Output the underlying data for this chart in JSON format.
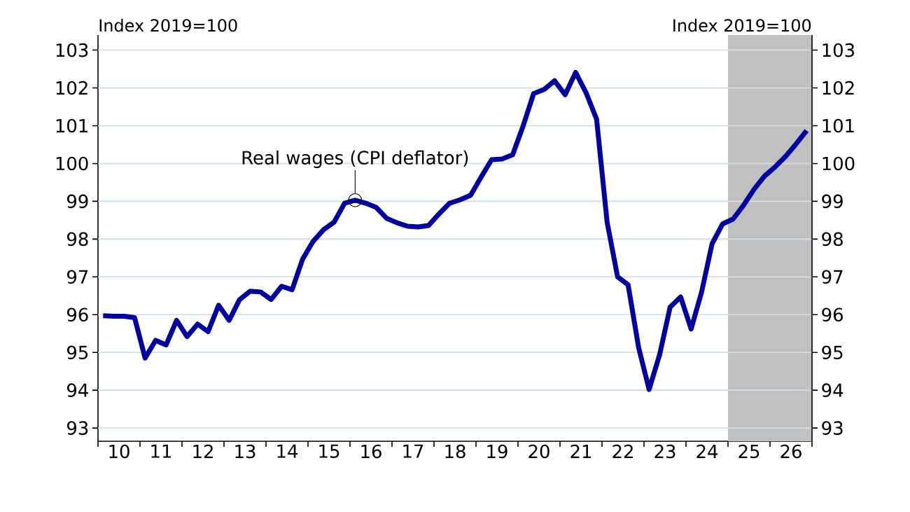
{
  "chart_data": {
    "type": "line",
    "ylabel": "Index 2019=100",
    "y2label": "Index 2019=100",
    "x": [
      "2010-02-15",
      "2010-05-15",
      "2010-08-15",
      "2010-11-15",
      "2011-02-15",
      "2011-05-15",
      "2011-08-15",
      "2011-11-15",
      "2012-02-15",
      "2012-05-15",
      "2012-08-15",
      "2012-11-15",
      "2013-02-15",
      "2013-05-15",
      "2013-08-15",
      "2013-11-15",
      "2014-02-15",
      "2014-05-15",
      "2014-08-15",
      "2014-11-15",
      "2015-02-15",
      "2015-05-15",
      "2015-08-15",
      "2015-11-15",
      "2016-02-15",
      "2016-05-15",
      "2016-08-15",
      "2016-11-15",
      "2017-02-15",
      "2017-05-15",
      "2017-08-15",
      "2017-11-15",
      "2018-02-15",
      "2018-05-15",
      "2018-08-15",
      "2018-11-15",
      "2019-02-15",
      "2019-05-15",
      "2019-08-15",
      "2019-11-15",
      "2020-02-15",
      "2020-05-15",
      "2020-08-15",
      "2020-11-15",
      "2021-02-15",
      "2021-05-15",
      "2021-08-15",
      "2021-11-15",
      "2022-02-15",
      "2022-05-15",
      "2022-08-15",
      "2022-11-15",
      "2023-02-15",
      "2023-05-15",
      "2023-08-15",
      "2023-11-15",
      "2024-02-15",
      "2024-05-15",
      "2024-08-15",
      "2024-11-15",
      "2025-02-15",
      "2025-05-15",
      "2025-08-15",
      "2025-11-15",
      "2026-02-15",
      "2026-05-15",
      "2026-08-15",
      "2026-11-15"
    ],
    "series": [
      {
        "color": "#0000a0",
        "values": [
          95.97,
          95.96,
          95.96,
          95.92,
          94.85,
          95.32,
          95.2,
          95.85,
          95.42,
          95.75,
          95.55,
          96.25,
          95.85,
          96.4,
          96.62,
          96.6,
          96.4,
          96.75,
          96.66,
          97.47,
          97.94,
          98.25,
          98.45,
          98.95,
          99.03,
          98.95,
          98.84,
          98.55,
          98.43,
          98.34,
          98.32,
          98.36,
          98.67,
          98.95,
          99.04,
          99.16,
          99.64,
          100.1,
          100.12,
          100.23,
          100.99,
          101.85,
          101.96,
          102.19,
          101.82,
          102.41,
          101.87,
          101.17,
          98.45,
          97.0,
          96.79,
          95.13,
          94.02,
          94.94,
          96.2,
          96.47,
          95.62,
          96.6,
          97.88,
          98.4,
          98.53,
          98.9,
          99.32,
          99.67,
          99.91,
          100.19,
          100.52,
          100.87
        ]
      }
    ],
    "xlim": [
      "2010",
      "2027"
    ],
    "xticks": [
      {
        "value": "2010",
        "label": null
      },
      {
        "value": "2010-07-01",
        "label": "10"
      },
      {
        "value": "2011",
        "label": null
      },
      {
        "value": "2011-07-01",
        "label": "11"
      },
      {
        "value": "2012",
        "label": null
      },
      {
        "value": "2012-07-01",
        "label": "12"
      },
      {
        "value": "2013",
        "label": null
      },
      {
        "value": "2013-07-01",
        "label": "13"
      },
      {
        "value": "2014",
        "label": null
      },
      {
        "value": "2014-07-01",
        "label": "14"
      },
      {
        "value": "2015",
        "label": null
      },
      {
        "value": "2015-07-01",
        "label": "15"
      },
      {
        "value": "2016",
        "label": null
      },
      {
        "value": "2016-07-01",
        "label": "16"
      },
      {
        "value": "2017",
        "label": null
      },
      {
        "value": "2017-07-01",
        "label": "17"
      },
      {
        "value": "2018",
        "label": null
      },
      {
        "value": "2018-07-01",
        "label": "18"
      },
      {
        "value": "2019",
        "label": null
      },
      {
        "value": "2019-07-01",
        "label": "19"
      },
      {
        "value": "2020",
        "label": null
      },
      {
        "value": "2020-07-01",
        "label": "20"
      },
      {
        "value": "2021",
        "label": null
      },
      {
        "value": "2021-07-01",
        "label": "21"
      },
      {
        "value": "2022",
        "label": null
      },
      {
        "value": "2022-07-01",
        "label": "22"
      },
      {
        "value": "2023",
        "label": null
      },
      {
        "value": "2023-07-01",
        "label": "23"
      },
      {
        "value": "2024",
        "label": null
      },
      {
        "value": "2024-07-01",
        "label": "24"
      },
      {
        "value": "2025",
        "label": null
      },
      {
        "value": "2025-07-01",
        "label": "25"
      },
      {
        "value": "2026",
        "label": null
      },
      {
        "value": "2026-07-01",
        "label": "26"
      },
      {
        "value": "2027",
        "label": null
      }
    ],
    "ylim": [
      92.65,
      103.4
    ],
    "yticks": [
      93,
      94,
      95,
      96,
      97,
      98,
      99,
      100,
      101,
      102,
      103
    ],
    "y2lim": [
      92.65,
      103.4
    ],
    "y2ticks": [
      93,
      94,
      95,
      96,
      97,
      98,
      99,
      100,
      101,
      102,
      103
    ],
    "grid": "y",
    "bands": [
      {
        "axis": "x",
        "from": "2025",
        "to": "2027",
        "color": "#c0c0c0"
      }
    ],
    "annotations": [
      {
        "text": "Real wages (CPI deflator)",
        "x": "2016-02-15",
        "y": 99.03
      }
    ]
  }
}
